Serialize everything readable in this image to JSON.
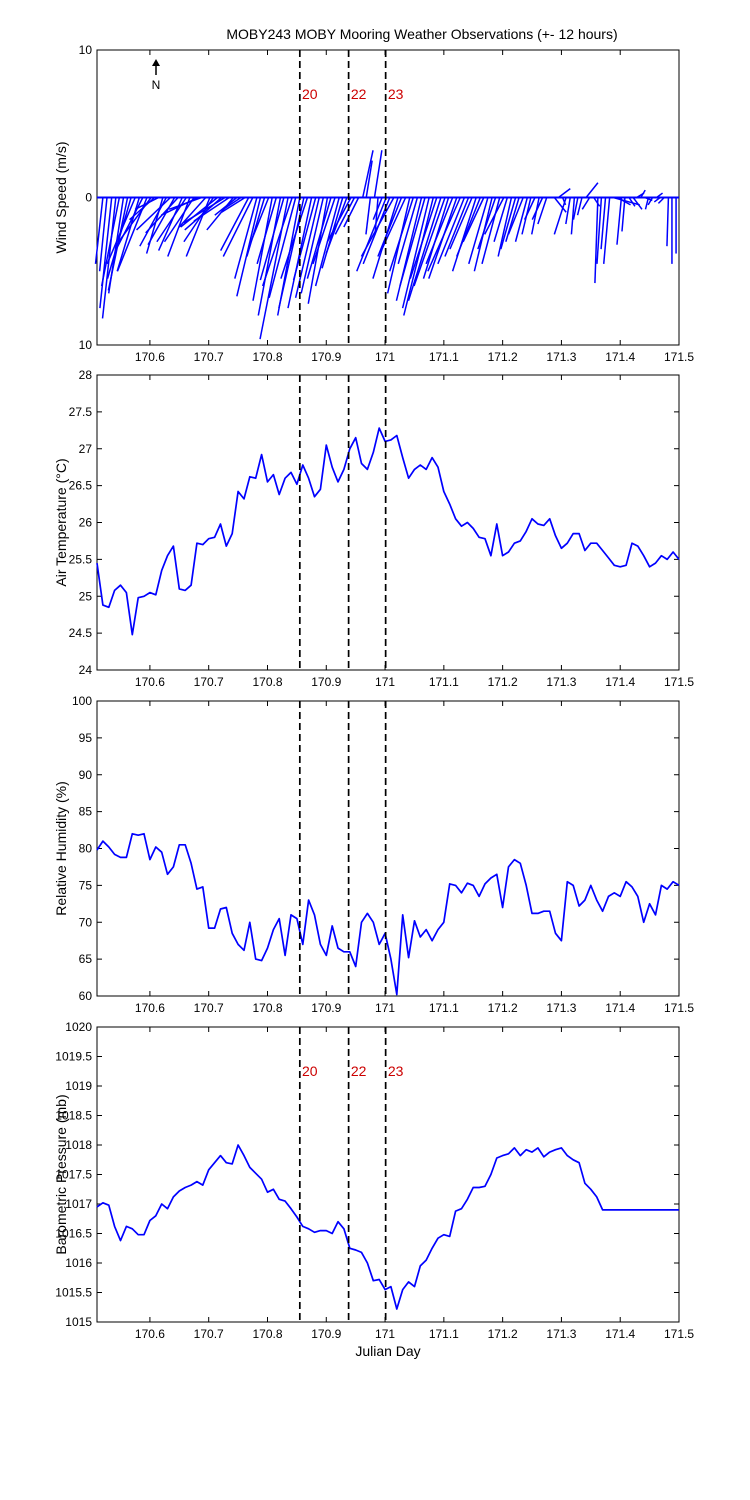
{
  "title": "MOBY243 MOBY Mooring Weather Observations (+- 12 hours)",
  "colors": {
    "series": "#0000ff",
    "marker_label": "#cc0000",
    "axis": "#000000",
    "background": "#ffffff"
  },
  "markers": {
    "x": [
      170.855,
      170.938,
      171.001
    ],
    "labels": [
      "20",
      "22",
      "23"
    ]
  },
  "x_range": [
    170.51,
    171.5
  ],
  "x_ticks": [
    170.6,
    170.7,
    170.8,
    170.9,
    171,
    171.1,
    171.2,
    171.3,
    171.4,
    171.5
  ],
  "x_tick_labels": [
    "170.6",
    "170.7",
    "170.8",
    "170.9",
    "171",
    "171.1",
    "171.2",
    "171.3",
    "171.4",
    "171.5"
  ],
  "north_label": "N",
  "chart_data": [
    {
      "type": "line",
      "subtype": "wind-vector",
      "ylabel": "Wind Speed (m/s)",
      "ylim": [
        -10,
        10
      ],
      "y_ticks": [
        10,
        0,
        -10
      ],
      "y_tick_labels": [
        "10",
        "0",
        "10"
      ],
      "xlabel": "",
      "grid": false,
      "x": [
        170.52,
        170.527,
        170.535,
        170.542,
        170.548,
        170.555,
        170.562,
        170.568,
        170.575,
        170.582,
        170.588,
        170.595,
        170.602,
        170.608,
        170.615,
        170.622,
        170.628,
        170.635,
        170.642,
        170.648,
        170.655,
        170.662,
        170.668,
        170.675,
        170.682,
        170.688,
        170.695,
        170.702,
        170.708,
        170.715,
        170.722,
        170.728,
        170.735,
        170.742,
        170.748,
        170.755,
        170.762,
        170.768,
        170.775,
        170.782,
        170.788,
        170.795,
        170.802,
        170.808,
        170.815,
        170.822,
        170.828,
        170.835,
        170.842,
        170.848,
        170.855,
        170.862,
        170.868,
        170.875,
        170.882,
        170.888,
        170.895,
        170.902,
        170.908,
        170.915,
        170.922,
        170.928,
        170.935,
        170.942,
        170.948,
        170.955,
        170.962,
        170.968,
        170.975,
        170.982,
        170.988,
        170.995,
        171.002,
        171.008,
        171.015,
        171.022,
        171.028,
        171.035,
        171.042,
        171.048,
        171.055,
        171.062,
        171.068,
        171.075,
        171.082,
        171.088,
        171.095,
        171.102,
        171.108,
        171.115,
        171.122,
        171.128,
        171.135,
        171.142,
        171.148,
        171.155,
        171.162,
        171.168,
        171.175,
        171.182,
        171.188,
        171.195,
        171.202,
        171.208,
        171.215,
        171.222,
        171.228,
        171.235,
        171.242,
        171.248,
        171.255,
        171.262,
        171.268,
        171.275,
        171.282,
        171.288,
        171.295,
        171.302,
        171.308,
        171.315,
        171.322,
        171.328,
        171.335,
        171.342,
        171.348,
        171.355,
        171.362,
        171.368,
        171.375,
        171.382,
        171.388,
        171.395,
        171.402,
        171.408,
        171.415,
        171.422,
        171.428,
        171.435,
        171.442,
        171.448,
        171.455,
        171.462,
        171.468,
        171.475,
        171.482,
        171.488,
        171.495
      ],
      "u": [
        -0.5,
        -0.5,
        -0.8,
        -0.9,
        -1.2,
        -1.0,
        -1.3,
        -1.6,
        -1.9,
        -1.5,
        -1.8,
        -2.0,
        -2.2,
        -1.7,
        -1.6,
        -1.1,
        -1.8,
        -2.3,
        -1.8,
        -2.2,
        -1.6,
        -2.0,
        -1.5,
        -2.0,
        -2.5,
        -2.2,
        -1.8,
        -1.6,
        -2.0,
        -2.5,
        -2.5,
        -2.8,
        -2.4,
        -1.8,
        -1.5,
        -1.2,
        -1.6,
        -1.9,
        -2.0,
        -1.5,
        -1.6,
        -1.2,
        -1.2,
        -1.3,
        -1.3,
        -1.5,
        -1.6,
        -1.9,
        -2.0,
        -1.8,
        -1.5,
        -1.7,
        -1.8,
        -1.6,
        -1.5,
        -1.6,
        -1.5,
        -1.3,
        -1.6,
        -1.5,
        -1.6,
        -1.4,
        -1.4,
        -1.6,
        -1.3,
        -1.0,
        0.7,
        0.4,
        -0.3,
        0.5,
        -0.2,
        -0.6,
        -2.0,
        -1.8,
        -2.2,
        -1.7,
        -1.6,
        -1.6,
        -1.5,
        -1.6,
        -1.3,
        -1.7,
        -1.7,
        -1.8,
        -2.0,
        -1.8,
        -2.2,
        -2.1,
        -1.7,
        -1.8,
        -1.9,
        -2.2,
        -1.8,
        -1.6,
        -1.5,
        -1.6,
        -1.6,
        -1.4,
        -1.3,
        -1.2,
        -1.2,
        -1.2,
        -1.3,
        -0.9,
        -0.9,
        -1.0,
        -0.9,
        -1.0,
        -0.8,
        -0.6,
        -0.7,
        -0.5,
        -0.7,
        -0.6,
        0,
        0.8,
        0.8,
        0.2,
        -0.8,
        -0.3,
        -0.2,
        -0.3,
        -0.3,
        0.8,
        -0.5,
        0.4,
        -0.2,
        -0.3,
        -0.3,
        -0.4,
        1.8,
        0.9,
        -0.3,
        -0.2,
        0.4,
        0.6,
        0.5,
        0.3,
        0.5,
        -0.2,
        -0.3,
        0.4,
        -0.4,
        -0.4,
        -0.1,
        0,
        0
      ],
      "v": [
        -4.5,
        -5.0,
        -7.5,
        -8.2,
        -6.0,
        -6.5,
        -6.3,
        -5.5,
        -4.5,
        -5.0,
        -3.5,
        -5.0,
        -3.0,
        -1.5,
        -0.8,
        -3.8,
        -3.3,
        -2.2,
        -3.2,
        -2.4,
        -3.6,
        -3.0,
        -4.0,
        -3.0,
        -1.2,
        -0.8,
        -2.0,
        -4.0,
        -3.0,
        -2.0,
        -2.2,
        -1.7,
        -1.6,
        -2.2,
        -1.2,
        -0.8,
        -1.0,
        -3.6,
        -4.0,
        -5.5,
        -6.7,
        -4.0,
        -3.0,
        -7.0,
        -4.5,
        -8.0,
        -5.6,
        -9.6,
        -6.0,
        -6.8,
        -8.0,
        -7.5,
        -5.5,
        -7.5,
        -5.6,
        -6.8,
        -6.5,
        -7.2,
        -5.5,
        -4.5,
        -6.0,
        -4.8,
        -3.8,
        -3.0,
        -2.5,
        -2.0,
        3.2,
        2.5,
        -2.5,
        3.2,
        -2.5,
        -1.5,
        -5.0,
        -4.5,
        -4.0,
        -5.5,
        -4.0,
        -3.5,
        -6.5,
        -5.0,
        -4.5,
        -7.0,
        -6.0,
        -7.5,
        -8.0,
        -5.5,
        -7.0,
        -6.0,
        -5.5,
        -4.5,
        -5.5,
        -5.0,
        -4.5,
        -4.0,
        -3.5,
        -5.0,
        -4.0,
        -3.0,
        -4.5,
        -5.0,
        -3.5,
        -4.5,
        -2.5,
        -3.0,
        -4.0,
        -3.5,
        -3.0,
        -2.5,
        -3.0,
        -2.5,
        -1.5,
        -2.5,
        -1.5,
        -1.8,
        0,
        -1.0,
        0.6,
        -0.5,
        -2.5,
        -1.8,
        -2.5,
        -1.5,
        -1.2,
        1.0,
        -0.8,
        -0.6,
        -5.8,
        -4.5,
        -3.5,
        -4.5,
        -0.5,
        -0.5,
        -3.2,
        -2.3,
        -0.6,
        -0.8,
        0.3,
        0.5,
        -0.2,
        -0.8,
        -0.5,
        0.3,
        -0.3,
        -0.4,
        -3.3,
        -4.5,
        -3.8
      ]
    },
    {
      "type": "line",
      "ylabel": "Air Temperature (°C)",
      "ylim": [
        24,
        28
      ],
      "y_ticks": [
        24,
        24.5,
        25,
        25.5,
        26,
        26.5,
        27,
        27.5,
        28
      ],
      "y_tick_labels": [
        "24",
        "24.5",
        "25",
        "25.5",
        "26",
        "26.5",
        "27",
        "27.5",
        "28"
      ],
      "xlabel": "",
      "grid": false,
      "x": [
        170.51,
        170.52,
        170.53,
        170.54,
        170.55,
        170.56,
        170.57,
        170.58,
        170.59,
        170.6,
        170.61,
        170.62,
        170.63,
        170.64,
        170.65,
        170.66,
        170.67,
        170.68,
        170.69,
        170.7,
        170.71,
        170.72,
        170.73,
        170.74,
        170.75,
        170.76,
        170.77,
        170.78,
        170.79,
        170.8,
        170.81,
        170.82,
        170.83,
        170.84,
        170.85,
        170.86,
        170.87,
        170.88,
        170.89,
        170.9,
        170.91,
        170.92,
        170.93,
        170.94,
        170.95,
        170.96,
        170.97,
        170.98,
        170.99,
        171.0,
        171.01,
        171.02,
        171.03,
        171.04,
        171.05,
        171.06,
        171.07,
        171.08,
        171.09,
        171.1,
        171.11,
        171.12,
        171.13,
        171.14,
        171.15,
        171.16,
        171.17,
        171.18,
        171.19,
        171.2,
        171.21,
        171.22,
        171.23,
        171.24,
        171.25,
        171.26,
        171.27,
        171.28,
        171.29,
        171.3,
        171.31,
        171.32,
        171.33,
        171.34,
        171.35,
        171.36,
        171.37,
        171.38,
        171.39,
        171.4,
        171.41,
        171.42,
        171.43,
        171.44,
        171.45,
        171.46,
        171.47,
        171.48,
        171.49,
        171.5
      ],
      "y": [
        25.45,
        24.88,
        24.85,
        25.08,
        25.15,
        25.05,
        24.48,
        24.98,
        25.0,
        25.05,
        25.02,
        25.35,
        25.55,
        25.68,
        25.1,
        25.08,
        25.15,
        25.72,
        25.7,
        25.78,
        25.8,
        25.98,
        25.68,
        25.85,
        26.42,
        26.32,
        26.62,
        26.6,
        26.92,
        26.55,
        26.65,
        26.38,
        26.6,
        26.68,
        26.52,
        26.78,
        26.6,
        26.35,
        26.45,
        27.05,
        26.75,
        26.55,
        26.72,
        27.0,
        27.15,
        26.8,
        26.72,
        26.95,
        27.28,
        27.1,
        27.12,
        27.18,
        26.88,
        26.6,
        26.72,
        26.78,
        26.72,
        26.88,
        26.75,
        26.42,
        26.25,
        26.05,
        25.95,
        26.0,
        25.92,
        25.8,
        25.78,
        25.55,
        25.98,
        25.55,
        25.6,
        25.72,
        25.75,
        25.88,
        26.05,
        25.98,
        25.96,
        26.05,
        25.82,
        25.65,
        25.72,
        25.85,
        25.85,
        25.62,
        25.72,
        25.72,
        25.62,
        25.52,
        25.42,
        25.4,
        25.42,
        25.72,
        25.68,
        25.55,
        25.4,
        25.45,
        25.55,
        25.5,
        25.6,
        25.5
      ]
    },
    {
      "type": "line",
      "ylabel": "Relative Humidity (%)",
      "ylim": [
        60,
        100
      ],
      "y_ticks": [
        60,
        65,
        70,
        75,
        80,
        85,
        90,
        95,
        100
      ],
      "y_tick_labels": [
        "60",
        "65",
        "70",
        "75",
        "80",
        "85",
        "90",
        "95",
        "100"
      ],
      "xlabel": "",
      "grid": false,
      "x": [
        170.51,
        170.52,
        170.53,
        170.54,
        170.55,
        170.56,
        170.57,
        170.58,
        170.59,
        170.6,
        170.61,
        170.62,
        170.63,
        170.64,
        170.65,
        170.66,
        170.67,
        170.68,
        170.69,
        170.7,
        170.71,
        170.72,
        170.73,
        170.74,
        170.75,
        170.76,
        170.77,
        170.78,
        170.79,
        170.8,
        170.81,
        170.82,
        170.83,
        170.84,
        170.85,
        170.86,
        170.87,
        170.88,
        170.89,
        170.9,
        170.91,
        170.92,
        170.93,
        170.94,
        170.95,
        170.96,
        170.97,
        170.98,
        170.99,
        171.0,
        171.01,
        171.02,
        171.03,
        171.04,
        171.05,
        171.06,
        171.07,
        171.08,
        171.09,
        171.1,
        171.11,
        171.12,
        171.13,
        171.14,
        171.15,
        171.16,
        171.17,
        171.18,
        171.19,
        171.2,
        171.21,
        171.22,
        171.23,
        171.24,
        171.25,
        171.26,
        171.27,
        171.28,
        171.29,
        171.3,
        171.31,
        171.32,
        171.33,
        171.34,
        171.35,
        171.36,
        171.37,
        171.38,
        171.39,
        171.4,
        171.41,
        171.42,
        171.43,
        171.44,
        171.45,
        171.46,
        171.47,
        171.48,
        171.49,
        171.5
      ],
      "y": [
        79.8,
        81.0,
        80.2,
        79.2,
        78.8,
        78.8,
        82.0,
        81.8,
        82.0,
        78.5,
        80.2,
        79.5,
        76.5,
        77.5,
        80.5,
        80.5,
        78.0,
        74.5,
        74.8,
        69.2,
        69.2,
        71.8,
        72.0,
        68.5,
        67.0,
        66.2,
        70.0,
        65.0,
        64.8,
        66.5,
        69.0,
        70.5,
        65.5,
        71.0,
        70.5,
        67.0,
        73.0,
        71.0,
        67.0,
        65.5,
        69.5,
        66.5,
        66.0,
        66.0,
        64.0,
        70.0,
        71.2,
        70.0,
        67.0,
        68.5,
        65.0,
        60.2,
        71.0,
        65.2,
        70.2,
        68.0,
        69.0,
        67.5,
        69.0,
        70.0,
        75.2,
        75.0,
        74.0,
        75.3,
        75.0,
        73.5,
        75.2,
        76.0,
        76.5,
        72.0,
        77.5,
        78.5,
        78.0,
        75.0,
        71.2,
        71.2,
        71.5,
        71.5,
        68.5,
        67.5,
        75.5,
        75.0,
        72.2,
        73.0,
        75.0,
        73.0,
        71.5,
        73.5,
        74.0,
        73.5,
        75.5,
        74.8,
        73.5,
        70.0,
        72.5,
        71.0,
        75.0,
        74.5,
        75.5,
        75.0
      ]
    },
    {
      "type": "line",
      "ylabel": "Barometric Pressure (mb)",
      "xlabel": "Julian Day",
      "ylim": [
        1015,
        1020
      ],
      "y_ticks": [
        1015,
        1015.5,
        1016,
        1016.5,
        1017,
        1017.5,
        1018,
        1018.5,
        1019,
        1019.5,
        1020
      ],
      "y_tick_labels": [
        "1015",
        "1015.5",
        "1016",
        "1016.5",
        "1017",
        "1017.5",
        "1018",
        "1018.5",
        "1019",
        "1019.5",
        "1020"
      ],
      "grid": false,
      "x": [
        170.51,
        170.52,
        170.53,
        170.54,
        170.55,
        170.56,
        170.57,
        170.58,
        170.59,
        170.6,
        170.61,
        170.62,
        170.63,
        170.64,
        170.65,
        170.66,
        170.67,
        170.68,
        170.69,
        170.7,
        170.71,
        170.72,
        170.73,
        170.74,
        170.75,
        170.76,
        170.77,
        170.78,
        170.79,
        170.8,
        170.81,
        170.82,
        170.83,
        170.84,
        170.85,
        170.86,
        170.87,
        170.88,
        170.89,
        170.9,
        170.91,
        170.92,
        170.93,
        170.94,
        170.95,
        170.96,
        170.97,
        170.98,
        170.99,
        171.0,
        171.01,
        171.02,
        171.03,
        171.04,
        171.05,
        171.06,
        171.07,
        171.08,
        171.09,
        171.1,
        171.11,
        171.12,
        171.13,
        171.14,
        171.15,
        171.16,
        171.17,
        171.18,
        171.19,
        171.2,
        171.21,
        171.22,
        171.23,
        171.24,
        171.25,
        171.26,
        171.27,
        171.28,
        171.29,
        171.3,
        171.31,
        171.32,
        171.33,
        171.34,
        171.35,
        171.36,
        171.37,
        171.38,
        171.39,
        171.4,
        171.41,
        171.42,
        171.43,
        171.44,
        171.45,
        171.46,
        171.47,
        171.48,
        171.49,
        171.5
      ],
      "y": [
        1016.95,
        1017.02,
        1016.98,
        1016.62,
        1016.38,
        1016.62,
        1016.58,
        1016.48,
        1016.48,
        1016.72,
        1016.8,
        1017.0,
        1016.92,
        1017.12,
        1017.22,
        1017.28,
        1017.32,
        1017.38,
        1017.32,
        1017.58,
        1017.7,
        1017.82,
        1017.7,
        1017.68,
        1018.0,
        1017.82,
        1017.62,
        1017.52,
        1017.42,
        1017.2,
        1017.25,
        1017.08,
        1017.05,
        1016.92,
        1016.78,
        1016.62,
        1016.58,
        1016.52,
        1016.55,
        1016.55,
        1016.5,
        1016.7,
        1016.58,
        1016.25,
        1016.22,
        1016.18,
        1016.0,
        1015.7,
        1015.72,
        1015.55,
        1015.6,
        1015.22,
        1015.55,
        1015.68,
        1015.6,
        1015.95,
        1016.05,
        1016.25,
        1016.42,
        1016.48,
        1016.45,
        1016.88,
        1016.92,
        1017.08,
        1017.28,
        1017.28,
        1017.3,
        1017.5,
        1017.78,
        1017.82,
        1017.85,
        1017.95,
        1017.82,
        1017.92,
        1017.88,
        1017.95,
        1017.8,
        1017.88,
        1017.92,
        1017.95,
        1017.82,
        1017.75,
        1017.7,
        1017.35,
        1017.25,
        1017.12,
        1016.9,
        1016.9,
        1016.9,
        1016.9,
        1016.9,
        1016.9,
        1016.9,
        1016.9,
        1016.9,
        1016.9,
        1016.9,
        1016.9,
        1016.9,
        1016.9
      ]
    }
  ]
}
